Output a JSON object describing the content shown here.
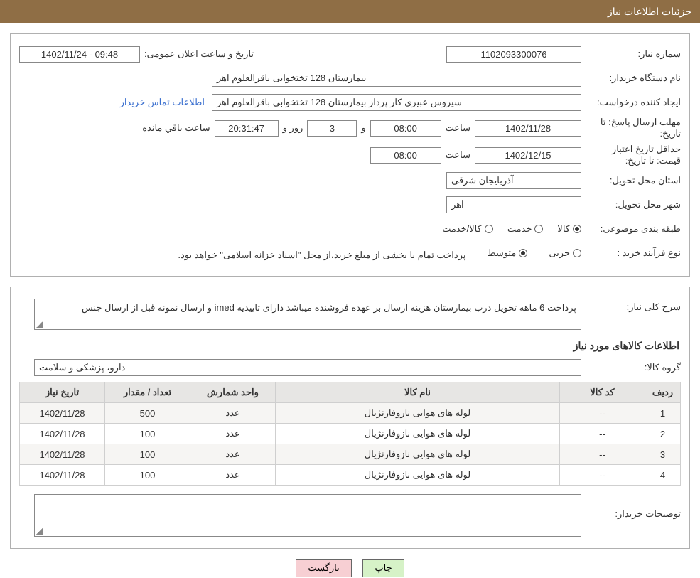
{
  "header": {
    "title": "جزئیات اطلاعات نیاز"
  },
  "fields": {
    "need_number_label": "شماره نیاز:",
    "need_number": "1102093300076",
    "announce_label": "تاریخ و ساعت اعلان عمومی:",
    "announce_value": "09:48 - 1402/11/24",
    "buyer_org_label": "نام دستگاه خریدار:",
    "buyer_org": "بیمارستان 128 تختخوابی باقرالعلوم اهر",
    "requester_label": "ایجاد کننده درخواست:",
    "requester": "سیروس عبیری کار پرداز بیمارستان 128 تختخوابی باقرالعلوم اهر",
    "contact_link": "اطلاعات تماس خریدار",
    "deadline_label": "مهلت ارسال پاسخ:  تا تاریخ:",
    "deadline_date": "1402/11/28",
    "time_label": "ساعت",
    "deadline_time": "08:00",
    "and_label": "و",
    "days_label": "روز و",
    "days_value": "3",
    "countdown": "20:31:47",
    "remaining_label": "ساعت باقي مانده",
    "validity_label": "حداقل تاریخ اعتبار قیمت: تا تاریخ:",
    "validity_date": "1402/12/15",
    "validity_time": "08:00",
    "province_label": "استان محل تحویل:",
    "province": "آذربایجان شرقی",
    "city_label": "شهر محل تحویل:",
    "city": "اهر",
    "category_label": "طبقه بندی موضوعی:",
    "cat_goods": "کالا",
    "cat_service": "خدمت",
    "cat_both": "کالا/خدمت",
    "process_label": "نوع فرآیند خرید :",
    "proc_partial": "جزیی",
    "proc_medium": "متوسط",
    "process_note": "پرداخت تمام یا بخشی از مبلغ خرید،از محل \"اسناد خزانه اسلامی\" خواهد بود."
  },
  "desc": {
    "summary_label": "شرح کلی نیاز:",
    "summary": "پرداخت 6 ماهه تحویل درب بیمارستان هزینه ارسال بر عهده فروشنده میباشد دارای تاییدیه imed  و ارسال نمونه قبل از ارسال جنس",
    "goods_title": "اطلاعات کالاهای مورد نیاز",
    "group_label": "گروه کالا:",
    "group": "دارو، پزشکی و سلامت",
    "buyer_notes_label": "توضیحات خریدار:"
  },
  "table": {
    "cols": [
      "ردیف",
      "کد کالا",
      "نام کالا",
      "واحد شمارش",
      "تعداد / مقدار",
      "تاریخ نیاز"
    ],
    "col_widths": [
      "50px",
      "120px",
      "auto",
      "120px",
      "120px",
      "120px"
    ],
    "rows": [
      [
        "1",
        "--",
        "لوله های هوایی نازوفارنژیال",
        "عدد",
        "500",
        "1402/11/28"
      ],
      [
        "2",
        "--",
        "لوله های هوایی نازوفارنژیال",
        "عدد",
        "100",
        "1402/11/28"
      ],
      [
        "3",
        "--",
        "لوله های هوایی نازوفارنژیال",
        "عدد",
        "100",
        "1402/11/28"
      ],
      [
        "4",
        "--",
        "لوله های هوایی نازوفارنژیال",
        "عدد",
        "100",
        "1402/11/28"
      ]
    ]
  },
  "buttons": {
    "print": "چاپ",
    "back": "بازگشت"
  },
  "colors": {
    "header_bg": "#8f6e45",
    "border": "#b0b0b0",
    "th_bg": "#e7e6e4",
    "row_alt": "#f6f5f3",
    "link": "#3a6fcf",
    "btn_print": "#d6f2c7",
    "btn_back": "#f7cfd3"
  }
}
